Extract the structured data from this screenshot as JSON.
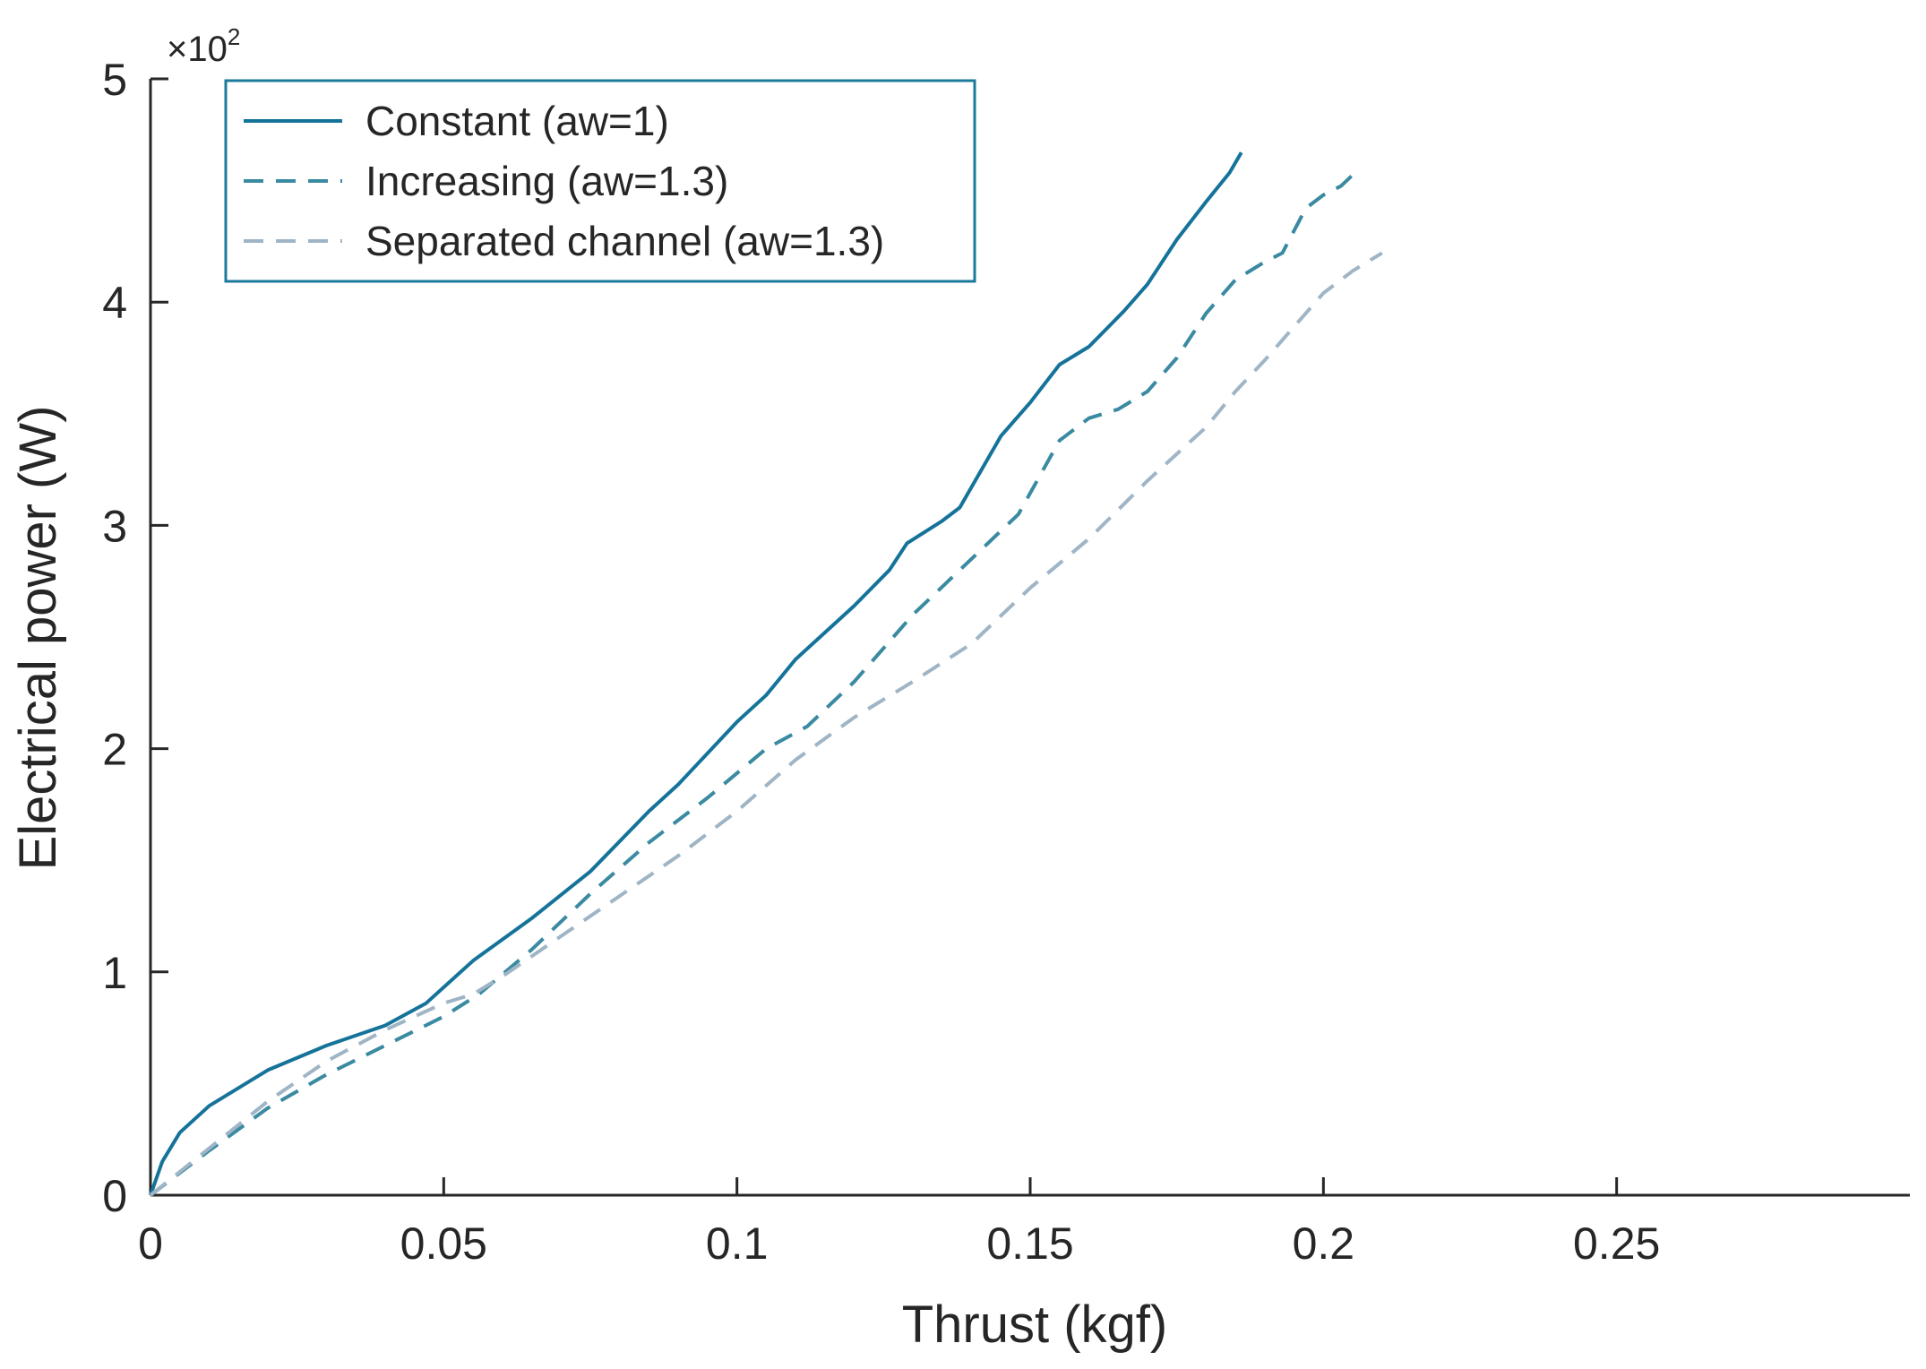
{
  "chart_data": {
    "type": "line",
    "title": "",
    "xlabel": "Thrust (kgf)",
    "ylabel": "Electrical power (W)",
    "y_exponent_label": "×10",
    "y_exponent_power": "2",
    "xlim": [
      0,
      0.3
    ],
    "ylim": [
      0,
      5
    ],
    "xticks": [
      0,
      0.05,
      0.1,
      0.15,
      0.2,
      0.25
    ],
    "xtick_labels": [
      "0",
      "0.05",
      "0.1",
      "0.15",
      "0.2",
      "0.25"
    ],
    "yticks": [
      0,
      1,
      2,
      3,
      4,
      5
    ],
    "ytick_labels": [
      "0",
      "1",
      "2",
      "3",
      "4",
      "5"
    ],
    "legend_position": "top-left",
    "series": [
      {
        "name": "Constant (aw=1)",
        "color": "#15739a",
        "dash": "solid",
        "x": [
          0,
          0.002,
          0.005,
          0.01,
          0.02,
          0.03,
          0.04,
          0.047,
          0.055,
          0.065,
          0.075,
          0.085,
          0.09,
          0.1,
          0.105,
          0.11,
          0.12,
          0.126,
          0.129,
          0.135,
          0.138,
          0.145,
          0.15,
          0.155,
          0.16,
          0.163,
          0.166,
          0.17,
          0.175,
          0.18,
          0.184,
          0.186
        ],
        "values": [
          0,
          0.15,
          0.28,
          0.4,
          0.56,
          0.67,
          0.76,
          0.86,
          1.05,
          1.24,
          1.45,
          1.72,
          1.84,
          2.12,
          2.24,
          2.4,
          2.64,
          2.8,
          2.92,
          3.02,
          3.08,
          3.4,
          3.55,
          3.72,
          3.8,
          3.88,
          3.96,
          4.08,
          4.28,
          4.45,
          4.58,
          4.67
        ]
      },
      {
        "name": "Increasing (aw=1.3)",
        "color": "#3a8aa1",
        "dash": "dashed",
        "x": [
          0,
          0.01,
          0.02,
          0.03,
          0.04,
          0.05,
          0.056,
          0.065,
          0.075,
          0.085,
          0.095,
          0.105,
          0.112,
          0.12,
          0.13,
          0.14,
          0.148,
          0.155,
          0.16,
          0.165,
          0.17,
          0.175,
          0.18,
          0.185,
          0.19,
          0.193,
          0.197,
          0.2,
          0.203,
          0.205
        ],
        "values": [
          0,
          0.2,
          0.39,
          0.54,
          0.67,
          0.8,
          0.9,
          1.1,
          1.35,
          1.58,
          1.78,
          2.0,
          2.1,
          2.3,
          2.6,
          2.85,
          3.05,
          3.38,
          3.48,
          3.52,
          3.6,
          3.75,
          3.95,
          4.1,
          4.18,
          4.22,
          4.42,
          4.48,
          4.52,
          4.57
        ]
      },
      {
        "name": "Separated channel (aw=1.3)",
        "color": "#9fb5c6",
        "dash": "dashed",
        "x": [
          0,
          0.01,
          0.02,
          0.03,
          0.04,
          0.05,
          0.055,
          0.06,
          0.07,
          0.08,
          0.09,
          0.1,
          0.11,
          0.12,
          0.13,
          0.14,
          0.15,
          0.16,
          0.17,
          0.18,
          0.185,
          0.19,
          0.2,
          0.205,
          0.21
        ],
        "values": [
          0,
          0.21,
          0.42,
          0.6,
          0.74,
          0.86,
          0.9,
          0.98,
          1.16,
          1.34,
          1.52,
          1.72,
          1.95,
          2.14,
          2.3,
          2.47,
          2.72,
          2.94,
          3.2,
          3.44,
          3.6,
          3.74,
          4.04,
          4.14,
          4.22
        ]
      }
    ]
  }
}
